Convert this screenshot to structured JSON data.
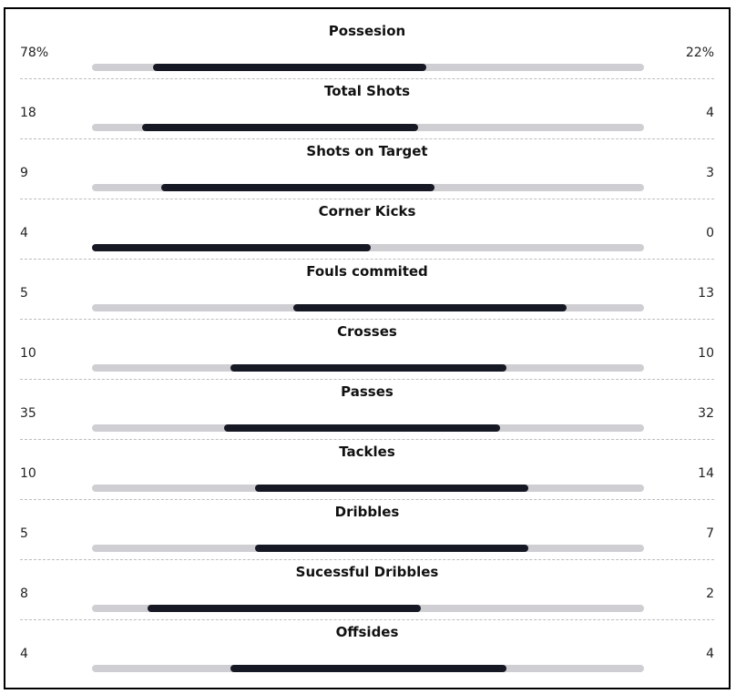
{
  "colors": {
    "track": "#cfcfd3",
    "fill": "#161824",
    "frame": "#000000"
  },
  "stats": [
    {
      "label": "Possesion",
      "left": "78%",
      "right": "22%",
      "fill_start": 0.11,
      "fill_end": 0.605
    },
    {
      "label": "Total Shots",
      "left": "18",
      "right": "4",
      "fill_start": 0.09,
      "fill_end": 0.59
    },
    {
      "label": "Shots on Target",
      "left": "9",
      "right": "3",
      "fill_start": 0.125,
      "fill_end": 0.62
    },
    {
      "label": "Corner Kicks",
      "left": "4",
      "right": "0",
      "fill_start": 0.0,
      "fill_end": 0.505
    },
    {
      "label": "Fouls commited",
      "left": "5",
      "right": "13",
      "fill_start": 0.365,
      "fill_end": 0.86
    },
    {
      "label": "Crosses",
      "left": "10",
      "right": "10",
      "fill_start": 0.25,
      "fill_end": 0.75
    },
    {
      "label": "Passes",
      "left": "35",
      "right": "32",
      "fill_start": 0.24,
      "fill_end": 0.74
    },
    {
      "label": "Tackles",
      "left": "10",
      "right": "14",
      "fill_start": 0.295,
      "fill_end": 0.79
    },
    {
      "label": "Dribbles",
      "left": "5",
      "right": "7",
      "fill_start": 0.295,
      "fill_end": 0.79
    },
    {
      "label": "Sucessful Dribbles",
      "left": "8",
      "right": "2",
      "fill_start": 0.1,
      "fill_end": 0.595
    },
    {
      "label": "Offsides",
      "left": "4",
      "right": "4",
      "fill_start": 0.25,
      "fill_end": 0.75
    }
  ]
}
